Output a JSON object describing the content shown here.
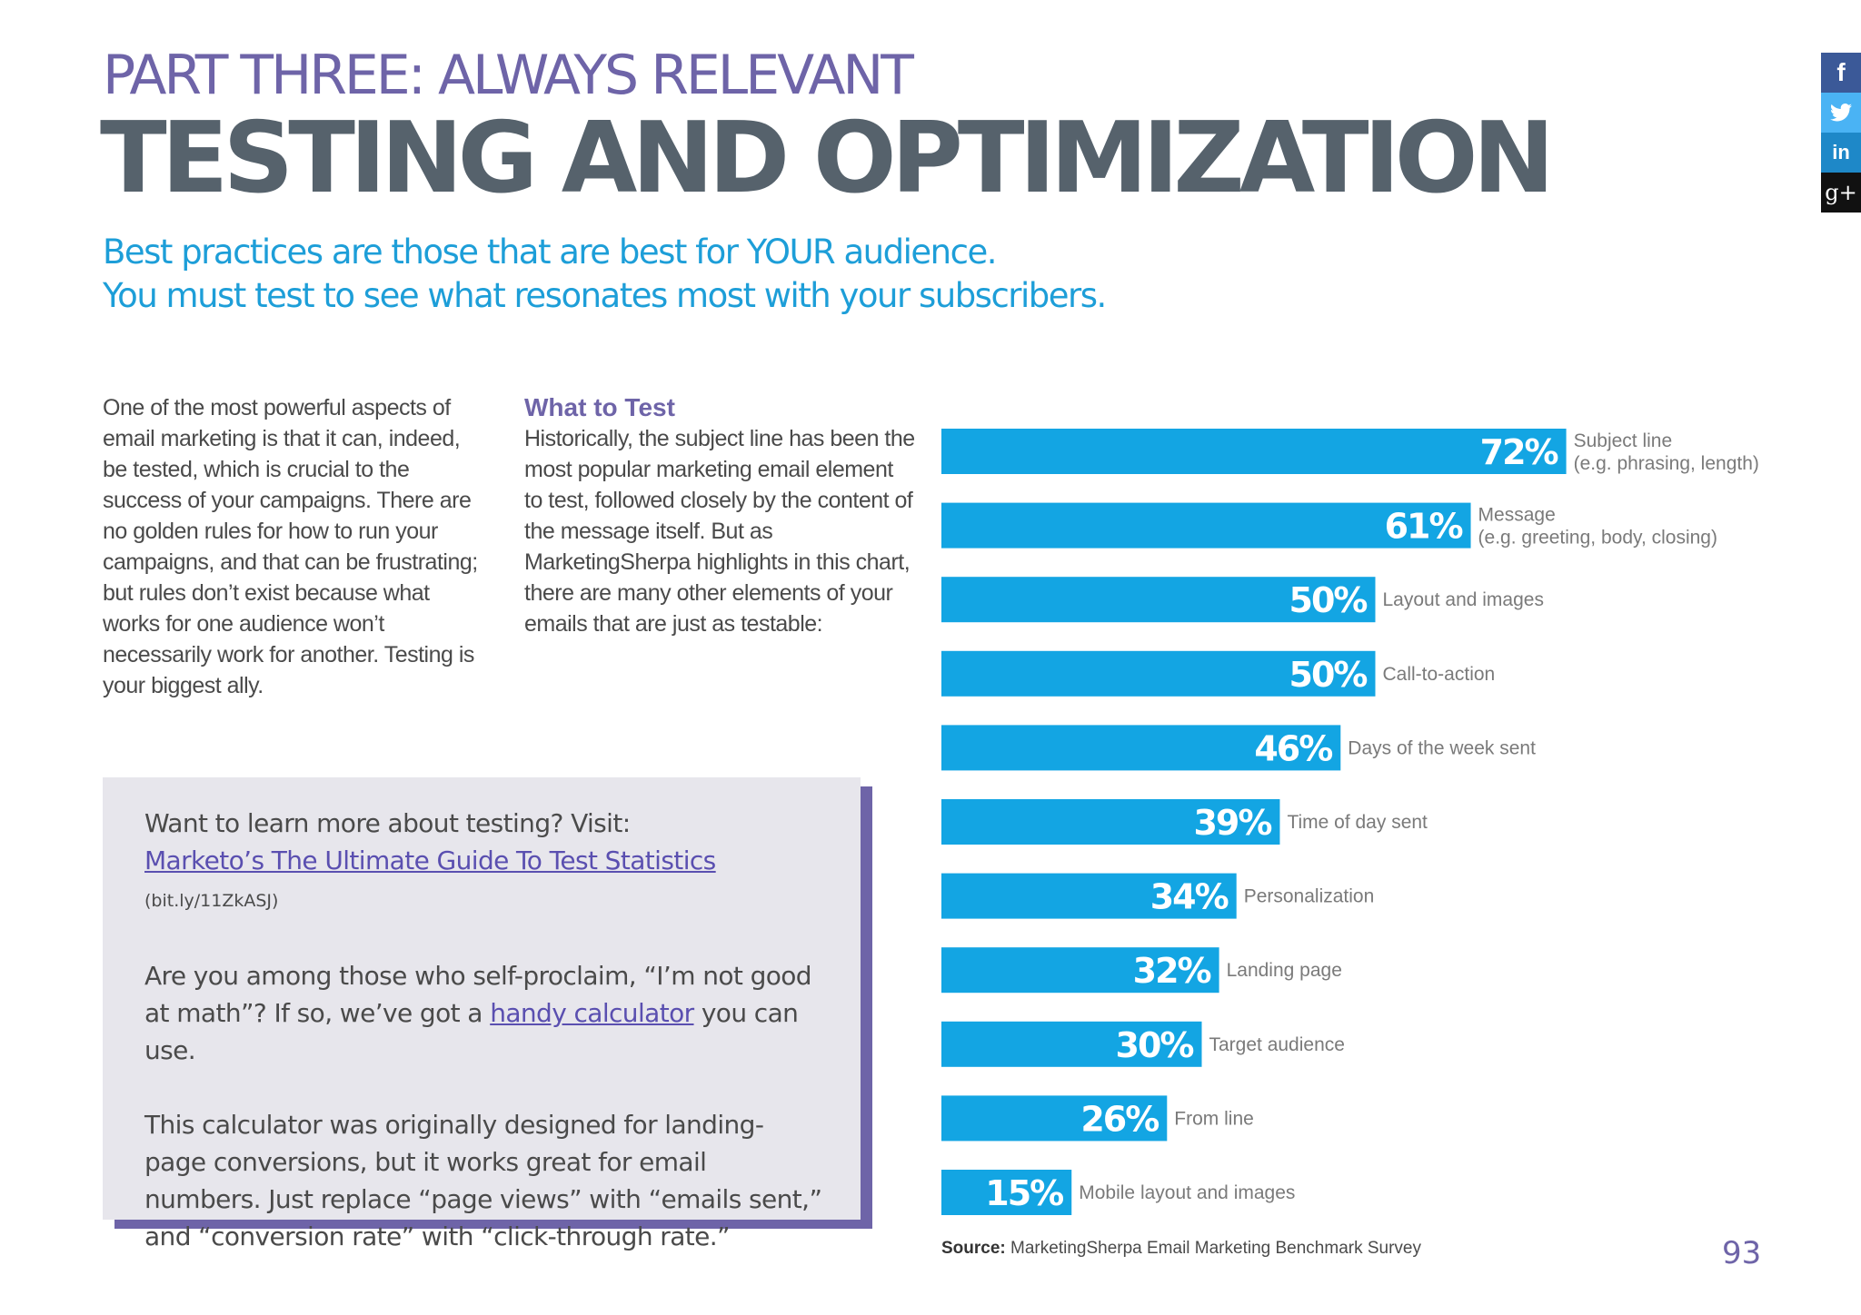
{
  "header": {
    "part_title": "PART THREE: ALWAYS RELEVANT",
    "main_title": "TESTING AND OPTIMIZATION",
    "subtitle_line1": "Best practices are those that are best for YOUR audience.",
    "subtitle_line2": "You must test to see what resonates most with your subscribers."
  },
  "intro": {
    "text": "One of the most powerful aspects of email marketing is that it can, indeed, be tested, which is crucial to the success of your campaigns. There are no golden rules for how to run your campaigns, and that can be frustrating; but rules don’t exist because what works for one audience won’t necessarily work for another. Testing is your biggest ally."
  },
  "what_to_test": {
    "heading": "What to Test",
    "text": "Historically, the subject line has been the most popular marketing email element to test, followed closely by the content of the message itself. But as MarketingSherpa highlights in this chart, there are many other elements of your emails that are just as testable:"
  },
  "callout": {
    "p1_prefix": "Want to learn more about testing? Visit:",
    "p1_link": "Marketo’s The Ultimate Guide To Test Statistics",
    "p1_small": "(bit.ly/11ZkASJ)",
    "p2_before": "Are you among those who self-proclaim, “I’m not good at math”? If so, we’ve got a",
    "p2_link": "handy calculator",
    "p2_after": "you can use.",
    "p3": "This calculator was originally designed for landing-page conversions, but it works great for email numbers. Just replace “page views” with “emails sent,” and “conversion rate” with “click-through rate.”"
  },
  "chart_data": {
    "type": "bar",
    "orientation": "horizontal",
    "categories": [
      [
        "Subject line",
        "(e.g. phrasing, length)"
      ],
      [
        "Message",
        "(e.g. greeting, body, closing)"
      ],
      [
        "Layout and images"
      ],
      [
        "Call-to-action"
      ],
      [
        "Days of the week sent"
      ],
      [
        "Time of day sent"
      ],
      [
        "Personalization"
      ],
      [
        "Landing page"
      ],
      [
        "Target audience"
      ],
      [
        "From line"
      ],
      [
        "Mobile layout and images"
      ]
    ],
    "values": [
      72,
      61,
      50,
      50,
      46,
      39,
      34,
      32,
      30,
      26,
      15
    ],
    "value_labels": [
      "72%",
      "61%",
      "50%",
      "50%",
      "46%",
      "39%",
      "34%",
      "32%",
      "30%",
      "26%",
      "15%"
    ],
    "bar_color": "#13a5e3"
  },
  "source": {
    "label": "Source:",
    "text": "MarketingSherpa Email Marketing Benchmark Survey"
  },
  "page_number": "93",
  "social": {
    "facebook": "f",
    "linkedin": "in",
    "googleplus": "g+"
  },
  "colors": {
    "purple": "#6e64a8",
    "slate": "#56626c",
    "blue": "#1d9ed8",
    "bar": "#13a5e3"
  }
}
